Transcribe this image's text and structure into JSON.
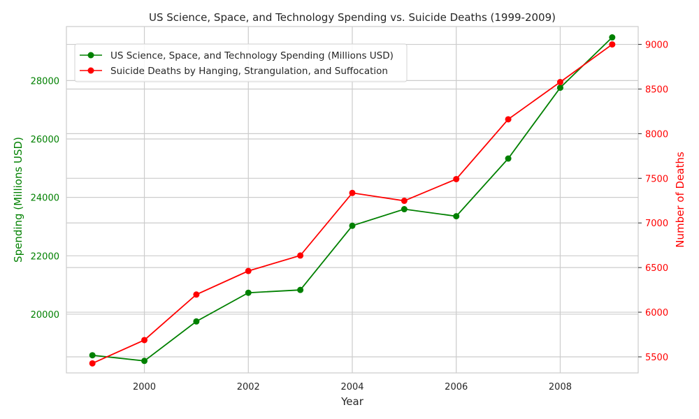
{
  "chart_data": {
    "type": "line",
    "title": "US Science, Space, and Technology Spending vs. Suicide Deaths (1999-2009)",
    "xlabel": "Year",
    "ylabel_left": "Spending (Millions USD)",
    "ylabel_right": "Number of Deaths",
    "x": [
      1999,
      2000,
      2001,
      2002,
      2003,
      2004,
      2005,
      2006,
      2007,
      2008,
      2009
    ],
    "xlim": [
      1998.5,
      2009.5
    ],
    "xticks": [
      2000,
      2002,
      2004,
      2006,
      2008
    ],
    "ylim_left": [
      17990,
      29850
    ],
    "yticks_left": [
      20000,
      22000,
      24000,
      26000,
      28000
    ],
    "ylim_right": [
      5320,
      9200
    ],
    "yticks_right": [
      5500,
      6000,
      6500,
      7000,
      7500,
      8000,
      8500,
      9000
    ],
    "grid": true,
    "legend_position": "top-left",
    "series": [
      {
        "name": "US Science, Space, and Technology Spending (Millions USD)",
        "axis": "left",
        "color": "#008000",
        "values": [
          18594,
          18401,
          19753,
          20734,
          20831,
          23029,
          23597,
          23355,
          25330,
          27755,
          29479
        ]
      },
      {
        "name": "Suicide Deaths by Hanging, Strangulation, and Suffocation",
        "axis": "right",
        "color": "#ff0000",
        "values": [
          5427,
          5688,
          6198,
          6462,
          6635,
          7336,
          7248,
          7491,
          8161,
          8578,
          9000
        ]
      }
    ]
  }
}
